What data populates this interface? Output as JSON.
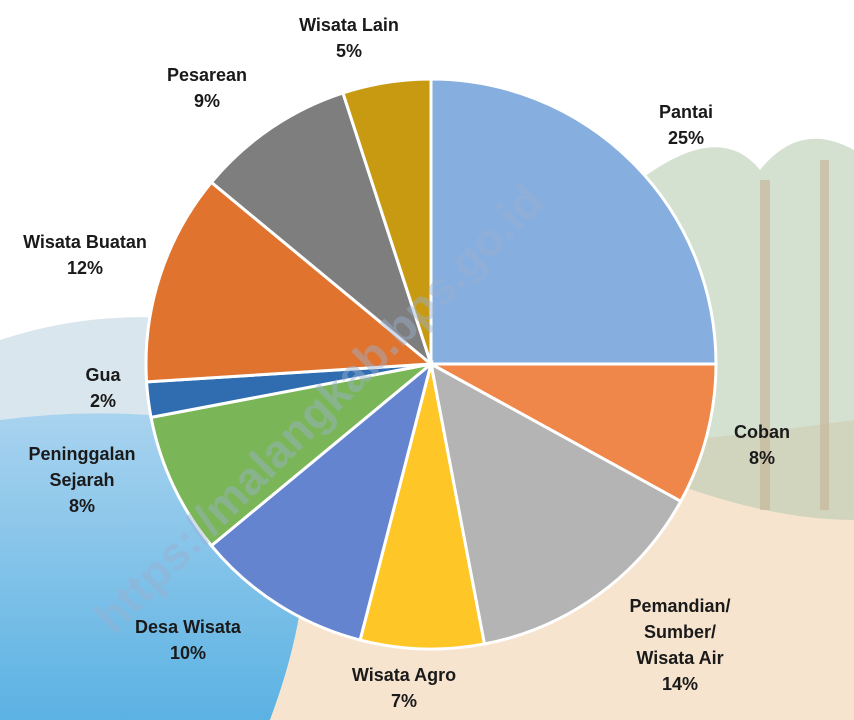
{
  "chart_data": {
    "type": "pie",
    "categories": [
      "Pantai",
      "Coban",
      "Pemandian/ Sumber/ Wisata Air",
      "Wisata Agro",
      "Desa Wisata",
      "Peninggalan Sejarah",
      "Gua",
      "Wisata Buatan",
      "Pesarean",
      "Wisata Lain"
    ],
    "values": [
      25,
      8,
      14,
      7,
      10,
      8,
      2,
      12,
      9,
      5
    ],
    "value_labels": [
      "25%",
      "8%",
      "14%",
      "7%",
      "10%",
      "8%",
      "2%",
      "12%",
      "9%",
      "5%"
    ],
    "colors": [
      "#86afe0",
      "#f0874a",
      "#b4b4b4",
      "#ffc627",
      "#6484d0",
      "#7ab657",
      "#2f6db0",
      "#e0742f",
      "#7e7e7e",
      "#c79a12"
    ],
    "watermark": "https://malangkab.bps.go.id"
  }
}
